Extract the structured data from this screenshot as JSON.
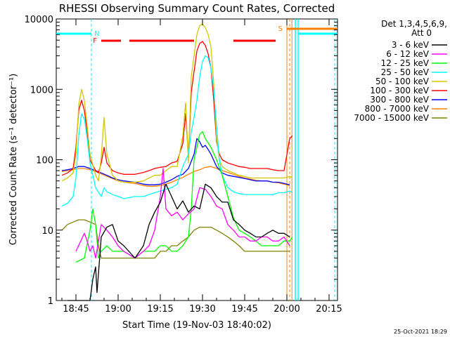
{
  "chart_data": {
    "type": "line",
    "title": "RHESSI Observing Summary Count Rates, Corrected",
    "xlabel": "Start Time (19-Nov-03 18:40:02)",
    "ylabel": "Corrected Count Rate (s⁻¹ detector⁻¹)",
    "y_scale": "log",
    "ylim": [
      1,
      10000
    ],
    "xlim_minutes_after_start": [
      -2,
      98
    ],
    "x_ticks": [
      {
        "label": "18:45",
        "minute": 5
      },
      {
        "label": "19:00",
        "minute": 20
      },
      {
        "label": "19:15",
        "minute": 35
      },
      {
        "label": "19:30",
        "minute": 50
      },
      {
        "label": "19:45",
        "minute": 65
      },
      {
        "label": "20:00",
        "minute": 80
      },
      {
        "label": "20:15",
        "minute": 95
      }
    ],
    "y_ticks": [
      {
        "label": "1",
        "value": 1
      },
      {
        "label": "10",
        "value": 10
      },
      {
        "label": "100",
        "value": 100
      },
      {
        "label": "1000",
        "value": 1000
      },
      {
        "label": "10000",
        "value": 10000
      }
    ],
    "legend_position": "right",
    "legend_header": [
      "Det 1,3,4,5,6,9,",
      "Att 0"
    ],
    "footer_date": "25-Oct-2021 18:29",
    "series": [
      {
        "name": "3 - 6 keV",
        "color": "#000000",
        "x": [
          2,
          8,
          10,
          11,
          12,
          12.5,
          14,
          16,
          18,
          20,
          22,
          26,
          29,
          31,
          33,
          35,
          37,
          39,
          41,
          43,
          45,
          47,
          49,
          51,
          53,
          55,
          57,
          59,
          61,
          63,
          65,
          67,
          69,
          71,
          73,
          75,
          77,
          79,
          81
        ],
        "y": [
          1,
          1,
          1,
          2,
          3,
          1.3,
          8,
          11,
          12,
          7,
          6,
          4,
          6,
          12,
          18,
          25,
          45,
          30,
          20,
          26,
          18,
          22,
          20,
          45,
          40,
          30,
          25,
          25,
          14,
          12,
          10,
          9,
          8,
          8,
          9,
          10,
          9,
          9,
          8
        ]
      },
      {
        "name": "6 - 12 keV",
        "color": "#ff00ff",
        "x": [
          5,
          8,
          9,
          10,
          11,
          12,
          14,
          16,
          18,
          20,
          22,
          26,
          29,
          31,
          33,
          35,
          36,
          37,
          39,
          41,
          43,
          45,
          47,
          49,
          51,
          53,
          55,
          57,
          59,
          61,
          63,
          65,
          67,
          69,
          71,
          73,
          75,
          77,
          79,
          81
        ],
        "y": [
          5,
          9,
          7,
          5,
          6,
          4,
          12,
          10,
          8,
          6,
          5,
          4,
          5,
          6,
          10,
          30,
          75,
          20,
          16,
          18,
          14,
          17,
          20,
          40,
          38,
          30,
          22,
          20,
          12,
          10,
          8,
          8,
          7,
          7,
          8,
          8,
          7,
          7,
          8,
          6
        ]
      },
      {
        "name": "12 - 25 keV",
        "color": "#00ff00",
        "x": [
          5,
          8,
          10,
          11,
          12,
          13,
          14,
          16,
          18,
          20,
          22,
          26,
          29,
          31,
          33,
          35,
          37,
          39,
          41,
          43,
          45,
          46,
          47,
          48,
          49,
          50,
          51,
          53,
          55,
          57,
          59,
          61,
          63,
          65,
          67,
          69,
          71,
          73,
          75,
          77,
          79,
          81,
          82
        ],
        "y": [
          3.5,
          4,
          10,
          20,
          12,
          4,
          5,
          6,
          5,
          5,
          5,
          4,
          5,
          5,
          5,
          6,
          6,
          5,
          5,
          6,
          8,
          20,
          100,
          150,
          230,
          250,
          200,
          150,
          100,
          60,
          30,
          15,
          10,
          9,
          8,
          7,
          6,
          6,
          6,
          6,
          7,
          7,
          8
        ]
      },
      {
        "name": "25 - 50 keV",
        "color": "#00ffff",
        "x": [
          0,
          2,
          4,
          5,
          6,
          7,
          8,
          9,
          10,
          12,
          14,
          15,
          16,
          18,
          20,
          22,
          26,
          29,
          31,
          33,
          35,
          37,
          39,
          41,
          43,
          45,
          46,
          47,
          48,
          49,
          50,
          51,
          52,
          53,
          54,
          55,
          56,
          57,
          59,
          61,
          63,
          65,
          67,
          69,
          71,
          73,
          75,
          77,
          79,
          81,
          82
        ],
        "y": [
          22,
          24,
          30,
          55,
          220,
          450,
          380,
          200,
          90,
          40,
          30,
          40,
          35,
          32,
          30,
          28,
          30,
          30,
          32,
          34,
          36,
          38,
          40,
          45,
          80,
          120,
          250,
          400,
          700,
          1500,
          2500,
          3000,
          2800,
          2000,
          1000,
          300,
          100,
          60,
          40,
          35,
          33,
          32,
          32,
          32,
          32,
          32,
          32,
          34,
          34,
          36,
          34
        ]
      },
      {
        "name": "50 - 100 keV",
        "color": "#d2c800",
        "x": [
          0,
          2,
          4,
          5,
          6,
          7,
          8,
          9,
          10,
          12,
          13,
          14,
          15,
          16,
          18,
          20,
          22,
          26,
          29,
          31,
          33,
          35,
          37,
          39,
          41,
          43,
          44,
          45,
          46,
          47,
          48,
          49,
          50,
          51,
          52,
          53,
          54,
          55,
          56,
          57,
          59,
          61,
          63,
          65,
          67,
          69,
          71,
          73,
          75,
          77,
          79,
          81,
          82
        ],
        "y": [
          50,
          55,
          65,
          120,
          600,
          1000,
          700,
          300,
          120,
          60,
          50,
          110,
          400,
          120,
          60,
          50,
          48,
          48,
          50,
          55,
          60,
          60,
          70,
          80,
          80,
          220,
          650,
          90,
          1500,
          3000,
          6000,
          8000,
          8500,
          7500,
          6000,
          4000,
          1200,
          200,
          100,
          80,
          70,
          65,
          60,
          58,
          55,
          55,
          55,
          55,
          55,
          55,
          55,
          58,
          55
        ]
      },
      {
        "name": "100 - 300 keV",
        "color": "#ff0000",
        "x": [
          0,
          2,
          4,
          5,
          6,
          7,
          8,
          9,
          10,
          12,
          13,
          14,
          15,
          16,
          18,
          20,
          22,
          26,
          29,
          31,
          33,
          35,
          37,
          39,
          41,
          43,
          44,
          45,
          46,
          47,
          48,
          49,
          50,
          51,
          52,
          53,
          54,
          55,
          56,
          57,
          59,
          61,
          63,
          65,
          67,
          69,
          71,
          73,
          75,
          77,
          79,
          81,
          82
        ],
        "y": [
          60,
          65,
          75,
          150,
          500,
          700,
          500,
          250,
          100,
          70,
          65,
          90,
          150,
          90,
          70,
          65,
          62,
          62,
          66,
          70,
          75,
          78,
          80,
          90,
          95,
          170,
          450,
          110,
          900,
          1800,
          3500,
          4500,
          4800,
          4200,
          3200,
          2000,
          700,
          180,
          120,
          100,
          90,
          85,
          80,
          78,
          75,
          75,
          75,
          75,
          72,
          70,
          70,
          200,
          220
        ]
      },
      {
        "name": "300 - 800 keV",
        "color": "#0000ff",
        "x": [
          0,
          2,
          4,
          6,
          8,
          10,
          12,
          14,
          16,
          18,
          20,
          22,
          26,
          29,
          31,
          33,
          35,
          37,
          39,
          41,
          43,
          45,
          47,
          48,
          49,
          50,
          51,
          52,
          53,
          55,
          57,
          59,
          61,
          63,
          65,
          67,
          69,
          71,
          73,
          75,
          77,
          79,
          81
        ],
        "y": [
          70,
          72,
          75,
          80,
          80,
          75,
          70,
          65,
          60,
          55,
          52,
          50,
          48,
          45,
          44,
          44,
          45,
          48,
          52,
          58,
          62,
          75,
          120,
          200,
          180,
          150,
          160,
          140,
          120,
          80,
          65,
          60,
          58,
          56,
          54,
          52,
          50,
          50,
          50,
          48,
          48,
          46,
          44
        ]
      },
      {
        "name": "800 - 7000 keV",
        "color": "#ff8000",
        "x": [
          0,
          2,
          4,
          6,
          8,
          10,
          12,
          14,
          16,
          18,
          20,
          22,
          26,
          29,
          31,
          33,
          35,
          37,
          39,
          41,
          43,
          45,
          47,
          49,
          51,
          53,
          55,
          57,
          59,
          61,
          63,
          65,
          67,
          69,
          71,
          73,
          75,
          77,
          79,
          81
        ],
        "y": [
          68,
          70,
          72,
          75,
          75,
          72,
          68,
          63,
          58,
          54,
          50,
          48,
          46,
          43,
          42,
          42,
          43,
          45,
          48,
          52,
          56,
          62,
          68,
          72,
          78,
          80,
          75,
          70,
          66,
          62,
          58,
          55,
          53,
          51,
          50,
          50,
          48,
          47,
          45,
          43
        ]
      },
      {
        "name": "7000 - 15000 keV",
        "color": "#808000",
        "x": [
          0,
          2,
          4,
          6,
          8,
          10,
          12,
          13,
          14,
          16,
          18,
          20,
          22,
          26,
          29,
          31,
          33,
          35,
          37,
          39,
          41,
          43,
          45,
          47,
          49,
          51,
          53,
          55,
          57,
          59,
          61,
          63,
          65,
          67,
          69,
          71,
          73,
          75,
          77,
          79,
          81
        ],
        "y": [
          10,
          12,
          13,
          14,
          14,
          13,
          12,
          6,
          4,
          4,
          4,
          4,
          4,
          4,
          4,
          4,
          4,
          5,
          5,
          6,
          6,
          7,
          8,
          10,
          11,
          11,
          11,
          10,
          9,
          8,
          7,
          6,
          5,
          5,
          5,
          5,
          5,
          5,
          5,
          5,
          5
        ]
      }
    ],
    "annotations": {
      "flags": [
        {
          "label": "F",
          "color": "#ff0000"
        },
        {
          "label": "N",
          "color": "#00ffff"
        },
        {
          "label": "S",
          "color": "#ff8000"
        }
      ]
    }
  }
}
